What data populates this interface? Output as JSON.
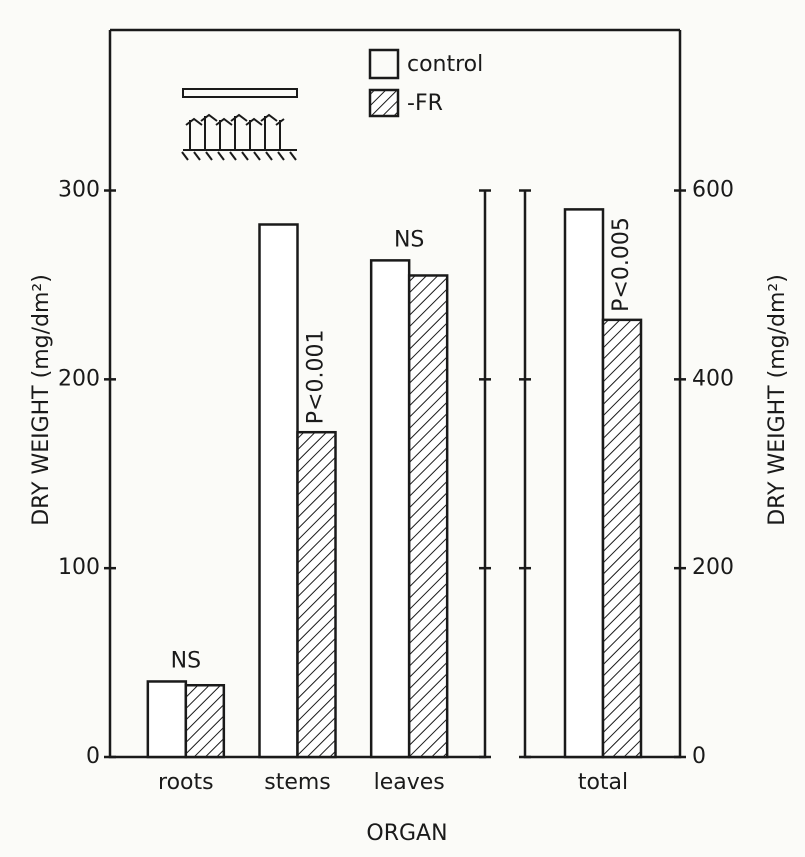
{
  "chart_data": [
    {
      "type": "bar",
      "ylabel": "DRY WEIGHT (mg/dm²)",
      "xlabel": "ORGAN",
      "categories": [
        "roots",
        "stems",
        "leaves"
      ],
      "series": [
        {
          "name": "control",
          "color": "#ffffff",
          "values": [
            40,
            282,
            263
          ]
        },
        {
          "name": "-FR",
          "color": "hatch",
          "values": [
            38,
            172,
            255
          ]
        }
      ],
      "annotations": [
        "NS",
        "P<0.001",
        "NS"
      ],
      "ylim": [
        0,
        385
      ],
      "yticks": [
        0,
        100,
        200,
        300
      ]
    },
    {
      "type": "bar",
      "y2label": "DRY WEIGHT (mg/dm²)",
      "categories": [
        "total"
      ],
      "series": [
        {
          "color": "#ffffff",
          "values": [
            580
          ],
          "axis": "y2"
        },
        {
          "color": "hatch",
          "values": [
            463
          ],
          "axis": "y2"
        }
      ],
      "annotations": [
        "P<0.005"
      ],
      "y2lim": [
        0,
        770
      ],
      "y2ticks": [
        0,
        200,
        400,
        600
      ]
    }
  ]
}
